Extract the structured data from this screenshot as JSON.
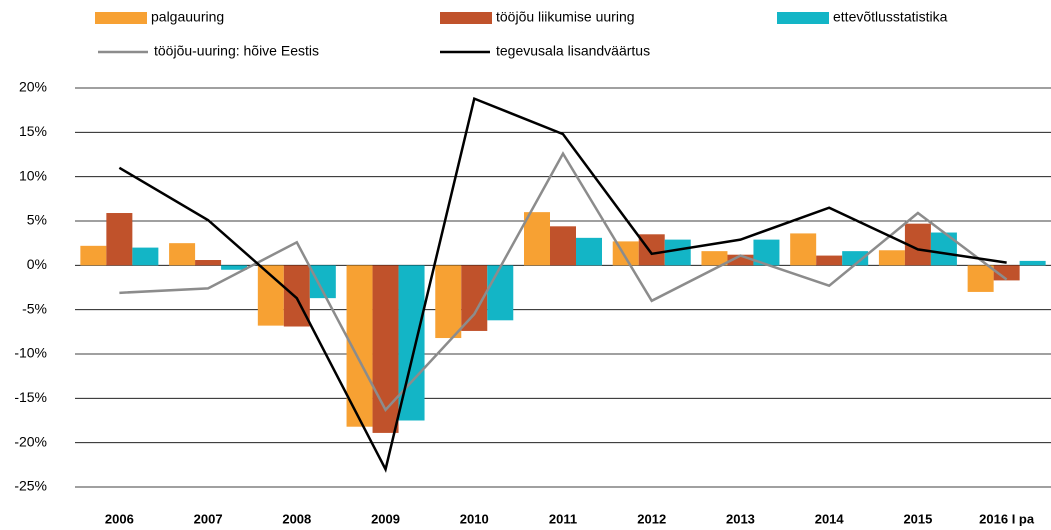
{
  "chart_data": {
    "type": "bar-line",
    "categories": [
      "2006",
      "2007",
      "2008",
      "2009",
      "2010",
      "2011",
      "2012",
      "2013",
      "2014",
      "2015",
      "2016 I pa"
    ],
    "series": [
      {
        "name": "palgauuring",
        "kind": "bar",
        "color": "#f7a133",
        "values": [
          2.2,
          2.5,
          -6.8,
          -18.2,
          -8.2,
          6.0,
          2.7,
          1.6,
          3.6,
          1.7,
          -3.0
        ]
      },
      {
        "name": "tööjõu liikumise uuring",
        "kind": "bar",
        "color": "#c0522b",
        "values": [
          5.9,
          0.6,
          -6.9,
          -18.9,
          -7.4,
          4.4,
          3.5,
          1.2,
          1.1,
          4.7,
          -1.7
        ]
      },
      {
        "name": "ettevõtlusstatistika",
        "kind": "bar",
        "color": "#13b5c6",
        "values": [
          2.0,
          -0.5,
          -3.7,
          -17.5,
          -6.2,
          3.1,
          2.9,
          2.9,
          1.6,
          3.7,
          0.5
        ]
      },
      {
        "name": "tööjõu-uuring: hõive Eestis",
        "kind": "line",
        "color": "#8c8c8c",
        "values": [
          -3.1,
          -2.6,
          2.6,
          -16.3,
          -5.5,
          12.6,
          -4.0,
          1.1,
          -2.3,
          5.9,
          -1.6
        ]
      },
      {
        "name": "tegevusala lisandväärtus",
        "kind": "line",
        "color": "#000000",
        "values": [
          11.0,
          5.1,
          -3.7,
          -23.0,
          18.8,
          14.8,
          1.3,
          2.9,
          6.5,
          1.8,
          0.3
        ]
      }
    ],
    "ylim": [
      -27.5,
      22
    ],
    "yticks": [
      {
        "value": 20,
        "label": "20%"
      },
      {
        "value": 15,
        "label": "15%"
      },
      {
        "value": 10,
        "label": "10%"
      },
      {
        "value": 5,
        "label": "5%"
      },
      {
        "value": 0,
        "label": "0%"
      },
      {
        "value": -5,
        "label": "-5%"
      },
      {
        "value": -10,
        "label": "-10%"
      },
      {
        "value": -15,
        "label": "-15%"
      },
      {
        "value": -20,
        "label": "-20%"
      },
      {
        "value": -25,
        "label": "-25%"
      }
    ],
    "grid": true,
    "legend": "top"
  }
}
